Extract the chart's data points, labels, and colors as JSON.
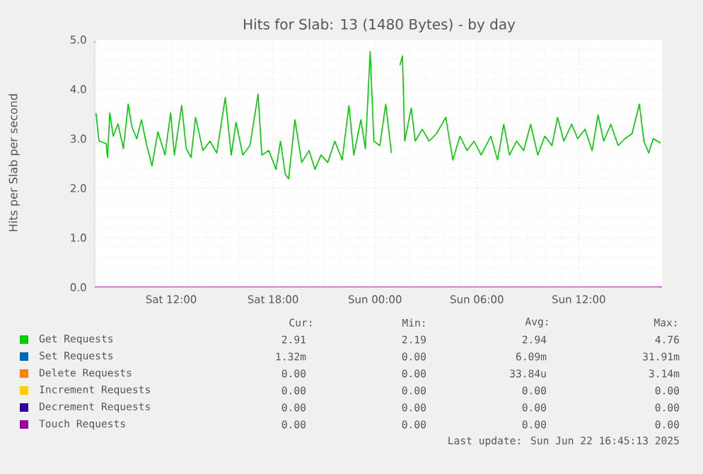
{
  "chart_data": {
    "type": "line",
    "title": "Hits for Slab: 13 (1480 Bytes) - by day",
    "ylabel": "Hits per Slab per second",
    "xlim": [
      "2025-06-21T07:30",
      "2025-06-22T16:54"
    ],
    "xticks": [
      {
        "value": "2025-06-21T12:00",
        "label": "Sat 12:00"
      },
      {
        "value": "2025-06-21T18:00",
        "label": "Sat 18:00"
      },
      {
        "value": "2025-06-22T00:00",
        "label": "Sun 00:00"
      },
      {
        "value": "2025-06-22T06:00",
        "label": "Sun 06:00"
      },
      {
        "value": "2025-06-22T12:00",
        "label": "Sun 12:00"
      }
    ],
    "ylim": [
      0,
      5
    ],
    "yticks": [
      {
        "value": 0,
        "label": "0.0"
      },
      {
        "value": 1,
        "label": "1.0"
      },
      {
        "value": 2,
        "label": "2.0"
      },
      {
        "value": 3,
        "label": "3.0"
      },
      {
        "value": 4,
        "label": "4.0"
      },
      {
        "value": 5,
        "label": "5.0"
      }
    ],
    "grid": true,
    "legend": "bottom",
    "line_style": "solid",
    "series": [
      {
        "name": "Get Requests",
        "color": "#00cc00",
        "x": [
          "2025-06-21T07:34",
          "2025-06-21T07:45",
          "2025-06-21T08:10",
          "2025-06-21T08:15",
          "2025-06-21T08:23",
          "2025-06-21T08:35",
          "2025-06-21T08:52",
          "2025-06-21T09:11",
          "2025-06-21T09:28",
          "2025-06-21T09:41",
          "2025-06-21T09:58",
          "2025-06-21T10:15",
          "2025-06-21T10:32",
          "2025-06-21T10:52",
          "2025-06-21T11:13",
          "2025-06-21T11:38",
          "2025-06-21T11:58",
          "2025-06-21T12:11",
          "2025-06-21T12:37",
          "2025-06-21T12:53",
          "2025-06-21T13:10",
          "2025-06-21T13:26",
          "2025-06-21T13:52",
          "2025-06-21T14:17",
          "2025-06-21T14:41",
          "2025-06-21T15:11",
          "2025-06-21T15:32",
          "2025-06-21T15:49",
          "2025-06-21T16:13",
          "2025-06-21T16:38",
          "2025-06-21T17:07",
          "2025-06-21T17:20",
          "2025-06-21T17:45",
          "2025-06-21T18:10",
          "2025-06-21T18:26",
          "2025-06-21T18:43",
          "2025-06-21T18:55",
          "2025-06-21T19:17",
          "2025-06-21T19:41",
          "2025-06-21T20:07",
          "2025-06-21T20:28",
          "2025-06-21T20:49",
          "2025-06-21T21:13",
          "2025-06-21T21:38",
          "2025-06-21T22:04",
          "2025-06-21T22:28",
          "2025-06-21T22:45",
          "2025-06-21T23:10",
          "2025-06-21T23:26",
          "2025-06-21T23:43",
          "2025-06-21T23:56",
          "2025-06-22T00:17",
          "2025-06-22T00:38",
          "2025-06-22T00:58",
          "2025-06-22T01:11",
          "2025-06-22T01:28",
          "2025-06-22T01:37",
          "2025-06-22T01:45",
          "2025-06-22T02:08",
          "2025-06-22T02:22",
          "2025-06-22T02:47",
          "2025-06-22T03:11",
          "2025-06-22T03:37",
          "2025-06-22T04:10",
          "2025-06-22T04:35",
          "2025-06-22T05:00",
          "2025-06-22T05:25",
          "2025-06-22T05:50",
          "2025-06-22T06:15",
          "2025-06-22T06:49",
          "2025-06-22T07:13",
          "2025-06-22T07:35",
          "2025-06-22T07:55",
          "2025-06-22T08:20",
          "2025-06-22T08:45",
          "2025-06-22T09:10",
          "2025-06-22T09:35",
          "2025-06-22T10:00",
          "2025-06-22T10:25",
          "2025-06-22T10:45",
          "2025-06-22T11:07",
          "2025-06-22T11:35",
          "2025-06-22T11:56",
          "2025-06-22T12:22",
          "2025-06-22T12:47",
          "2025-06-22T13:08",
          "2025-06-22T13:28",
          "2025-06-22T13:53",
          "2025-06-22T14:19",
          "2025-06-22T14:43",
          "2025-06-22T15:08",
          "2025-06-22T15:34",
          "2025-06-22T15:50",
          "2025-06-22T16:07",
          "2025-06-22T16:23",
          "2025-06-22T16:49"
        ],
        "values": [
          3.52,
          2.95,
          2.9,
          2.62,
          3.52,
          3.05,
          3.3,
          2.8,
          3.7,
          3.24,
          3.0,
          3.38,
          2.9,
          2.45,
          3.14,
          2.67,
          3.52,
          2.67,
          3.67,
          2.8,
          2.62,
          3.43,
          2.76,
          2.95,
          2.71,
          3.83,
          2.67,
          3.33,
          2.67,
          2.86,
          3.9,
          2.67,
          2.76,
          2.38,
          2.95,
          2.28,
          2.19,
          3.38,
          2.52,
          2.76,
          2.38,
          2.67,
          2.52,
          2.95,
          2.57,
          3.67,
          2.67,
          3.38,
          2.8,
          4.76,
          2.95,
          2.86,
          3.7,
          2.71,
          null,
          4.48,
          4.67,
          2.95,
          3.62,
          2.95,
          3.19,
          2.95,
          3.1,
          3.43,
          2.57,
          3.05,
          2.76,
          2.95,
          2.67,
          3.05,
          2.57,
          3.29,
          2.67,
          2.95,
          2.76,
          3.29,
          2.67,
          3.05,
          2.86,
          3.43,
          2.95,
          3.29,
          3.0,
          3.19,
          2.76,
          3.48,
          2.95,
          3.29,
          2.86,
          3.0,
          3.1,
          3.7,
          2.95,
          2.71,
          3.0,
          2.91
        ]
      },
      {
        "name": "Set Requests",
        "color": "#0066b3"
      },
      {
        "name": "Delete Requests",
        "color": "#ff8000"
      },
      {
        "name": "Increment Requests",
        "color": "#ffcc00"
      },
      {
        "name": "Decrement Requests",
        "color": "#330099"
      },
      {
        "name": "Touch Requests",
        "color": "#990099",
        "x": [
          "2025-06-21T07:30",
          "2025-06-22T16:54"
        ],
        "values": [
          0,
          0
        ]
      }
    ],
    "annotations": [
      "Cur:",
      "Min:",
      "Avg:",
      "Max:",
      "2.91",
      "2.19",
      "2.94",
      "4.76",
      "1.32m",
      "0.00",
      "6.09m",
      "31.91m",
      "0.00",
      "0.00",
      "33.84u",
      "3.14m",
      "0.00",
      "0.00",
      "0.00",
      "0.00",
      "0.00",
      "0.00",
      "0.00",
      "0.00",
      "0.00",
      "0.00",
      "0.00",
      "0.00",
      "Last update: Sun Jun 22 16:45:13 2025"
    ]
  }
}
